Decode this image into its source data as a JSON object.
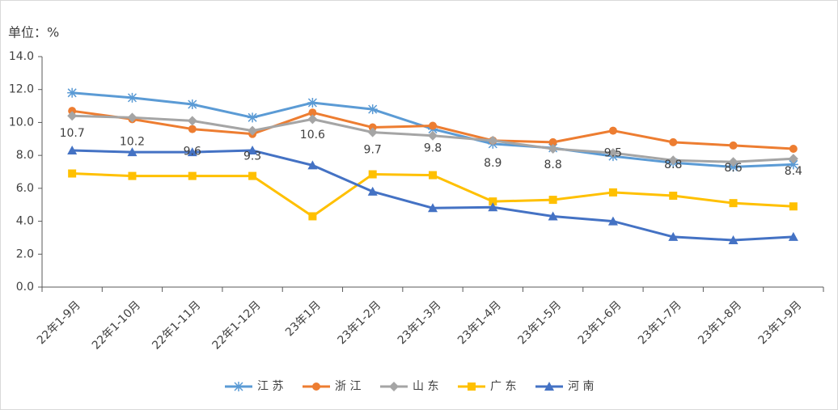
{
  "chart_data": {
    "type": "line",
    "unit_label": "单位：%",
    "categories": [
      "22年1-9月",
      "22年1-10月",
      "22年1-11月",
      "22年1-12月",
      "23年1月",
      "23年1-2月",
      "23年1-3月",
      "23年1-4月",
      "23年1-5月",
      "23年1-6月",
      "23年1-7月",
      "23年1-8月",
      "23年1-9月"
    ],
    "series": [
      {
        "name": "江 苏",
        "color": "#5B9BD5",
        "marker": "asterisk",
        "values": [
          11.8,
          11.5,
          11.1,
          10.3,
          11.2,
          10.8,
          9.6,
          8.7,
          8.45,
          7.95,
          7.55,
          7.3,
          7.45
        ]
      },
      {
        "name": "浙 江",
        "color": "#ED7D31",
        "marker": "circle",
        "show_labels": true,
        "values": [
          10.7,
          10.2,
          9.6,
          9.3,
          10.6,
          9.7,
          9.8,
          8.9,
          8.8,
          9.5,
          8.8,
          8.6,
          8.4
        ]
      },
      {
        "name": "山 东",
        "color": "#A5A5A5",
        "marker": "diamond",
        "values": [
          10.4,
          10.3,
          10.1,
          9.5,
          10.2,
          9.4,
          9.2,
          8.9,
          8.4,
          8.15,
          7.7,
          7.6,
          7.8
        ]
      },
      {
        "name": "广 东",
        "color": "#FFC000",
        "marker": "square",
        "values": [
          6.9,
          6.75,
          6.75,
          6.75,
          4.3,
          6.85,
          6.8,
          5.2,
          5.3,
          5.75,
          5.55,
          5.1,
          4.9
        ]
      },
      {
        "name": "河 南",
        "color": "#4472C4",
        "marker": "triangle",
        "values": [
          8.3,
          8.2,
          8.2,
          8.3,
          7.4,
          5.8,
          4.8,
          4.85,
          4.3,
          4.0,
          3.05,
          2.85,
          3.05
        ]
      }
    ],
    "ylim": [
      0,
      14
    ],
    "yticks": [
      {
        "value": 0,
        "label": "0.0"
      },
      {
        "value": 2,
        "label": "2.0"
      },
      {
        "value": 4,
        "label": "4.0"
      },
      {
        "value": 6,
        "label": "6.0"
      },
      {
        "value": 8,
        "label": "8.0"
      },
      {
        "value": 10,
        "label": "10.0"
      },
      {
        "value": 12,
        "label": "12.0"
      },
      {
        "value": 14,
        "label": "14.0"
      }
    ],
    "legend": "bottom"
  }
}
